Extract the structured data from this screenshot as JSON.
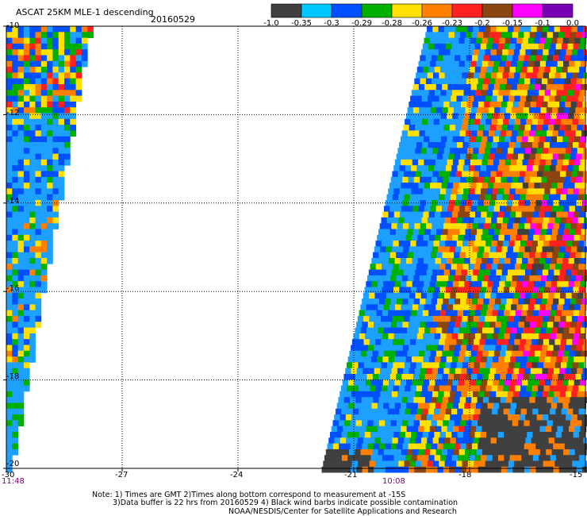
{
  "header": {
    "title": "ASCAT 25KM MLE-1 descending",
    "date": "20160529"
  },
  "colorbar": {
    "colors": [
      "#404040",
      "#00c8ff",
      "#0050ff",
      "#00b000",
      "#ffe000",
      "#ff8000",
      "#ff2020",
      "#8b4513",
      "#ff00ff",
      "#7a00b4"
    ],
    "labels": [
      "-1.0",
      "-0.35",
      "-0.3",
      "-0.29",
      "-0.28",
      "-0.26",
      "-0.23",
      "-0.2",
      "-0.15",
      "-0.1",
      "0.0"
    ]
  },
  "map": {
    "lat_ticks": [
      "-10",
      "-12",
      "-14",
      "-16",
      "-18",
      "-20"
    ],
    "lon_ticks": [
      "-30",
      "-27",
      "-24",
      "-21",
      "-18",
      "-15"
    ],
    "pass_times": [
      "11:48",
      "10:08"
    ],
    "lon_range": [
      -30,
      -15
    ],
    "lat_range": [
      -20,
      -10
    ],
    "grid": "dotted"
  },
  "footer": {
    "note_line1": "Note: 1) Times are GMT 2)Times along bottom correspond to measurement at -15S",
    "note_line2": "3)Data buffer is 22 hrs from 20160529 4) Black wind barbs indicate possible contamination",
    "note_line3": "NOAA/NESDIS/Center for Satellite Applications and Research"
  }
}
